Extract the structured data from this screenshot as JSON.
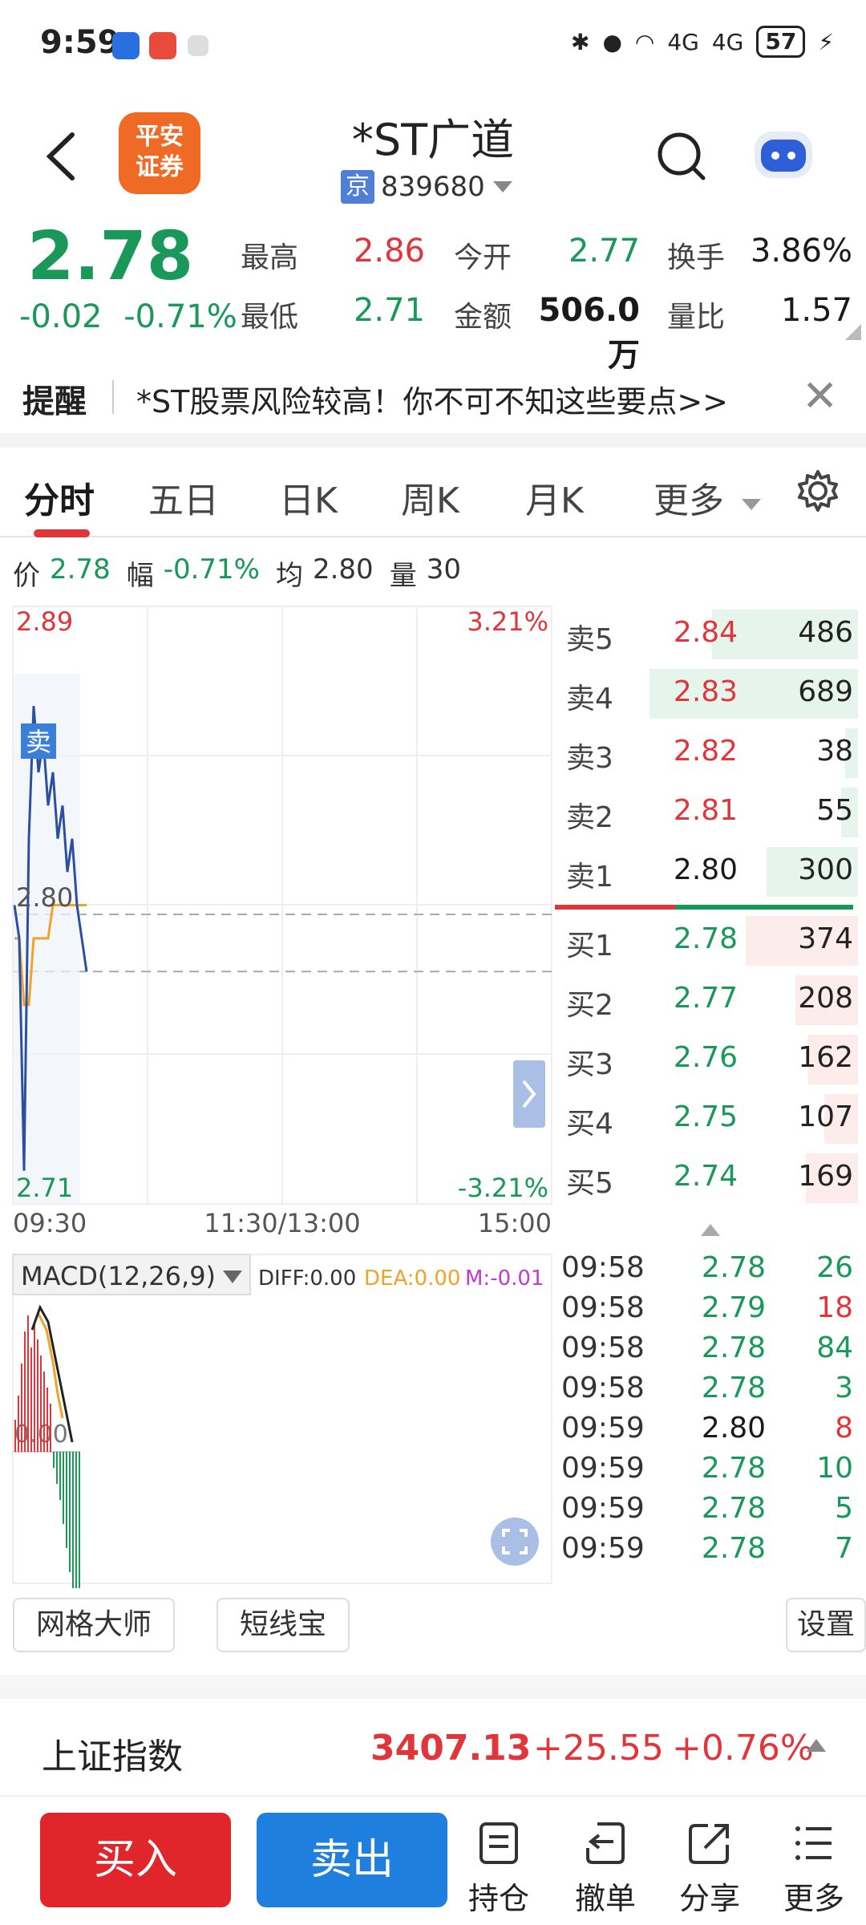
{
  "status_bar": {
    "time": "9:59",
    "battery": "57",
    "network_1": "4G",
    "network_2": "4G"
  },
  "header": {
    "logo_text_1": "平安",
    "logo_text_2": "证券",
    "stock_name": "*ST广道",
    "exchange": "京",
    "stock_code": "839680"
  },
  "quote": {
    "last_price": "2.78",
    "change": "-0.02",
    "change_pct": "-0.71%",
    "fields": [
      {
        "label": "最高",
        "value": "2.86",
        "tone": "red"
      },
      {
        "label": "今开",
        "value": "2.77",
        "tone": "green"
      },
      {
        "label": "换手",
        "value": "3.86%",
        "tone": "black"
      },
      {
        "label": "最低",
        "value": "2.71",
        "tone": "green"
      },
      {
        "label": "金额",
        "value": "506.0万",
        "tone": "black"
      },
      {
        "label": "量比",
        "value": "1.57",
        "tone": "black"
      }
    ]
  },
  "alert": {
    "title": "提醒",
    "text": "*ST股票风险较高！你不可不知这些要点>>"
  },
  "tabs": [
    {
      "label": "分时",
      "active": true
    },
    {
      "label": "五日",
      "active": false
    },
    {
      "label": "日K",
      "active": false
    },
    {
      "label": "周K",
      "active": false
    },
    {
      "label": "月K",
      "active": false
    },
    {
      "label": "更多",
      "active": false
    }
  ],
  "info_line": {
    "price_label": "价",
    "price": "2.78",
    "range_label": "幅",
    "range": "-0.71%",
    "avg_label": "均",
    "avg": "2.80",
    "vol_label": "量",
    "vol": "30"
  },
  "chart_data": {
    "type": "line",
    "y_top_label": "2.89",
    "y_bottom_label": "2.71",
    "y_mid_label": "2.80",
    "pct_top_label": "3.21%",
    "pct_bottom_label": "-3.21%",
    "x_labels": [
      "09:30",
      "11:30/13:00",
      "15:00"
    ],
    "sell_marker": "卖",
    "ylim": [
      2.71,
      2.89
    ],
    "series": [],
    "price_line": [
      2.8,
      2.79,
      2.72,
      2.82,
      2.86,
      2.84,
      2.85,
      2.83,
      2.84,
      2.82,
      2.83,
      2.81,
      2.82,
      2.8,
      2.79,
      2.78
    ],
    "avg_line": [
      2.79,
      2.79,
      2.77,
      2.77,
      2.79,
      2.79,
      2.79,
      2.79,
      2.8,
      2.8,
      2.8,
      2.8,
      2.8,
      2.8,
      2.8,
      2.8
    ],
    "macd": {
      "label": "MACD(12,26,9)",
      "diff": "DIFF:0.00",
      "dea": "DEA:0.00",
      "m": "M:-0.01",
      "zero_label": "0.00"
    }
  },
  "orderbook": {
    "asks": [
      {
        "label": "卖5",
        "price": "2.84",
        "vol": "486",
        "depth": 0.7
      },
      {
        "label": "卖4",
        "price": "2.83",
        "vol": "689",
        "depth": 1.0
      },
      {
        "label": "卖3",
        "price": "2.82",
        "vol": "38",
        "depth": 0.06
      },
      {
        "label": "卖2",
        "price": "2.81",
        "vol": "55",
        "depth": 0.08
      },
      {
        "label": "卖1",
        "price": "2.80",
        "vol": "300",
        "depth": 0.44
      }
    ],
    "bids": [
      {
        "label": "买1",
        "price": "2.78",
        "vol": "374",
        "depth": 0.54
      },
      {
        "label": "买2",
        "price": "2.77",
        "vol": "208",
        "depth": 0.3
      },
      {
        "label": "买3",
        "price": "2.76",
        "vol": "162",
        "depth": 0.24
      },
      {
        "label": "买4",
        "price": "2.75",
        "vol": "107",
        "depth": 0.16
      },
      {
        "label": "买5",
        "price": "2.74",
        "vol": "169",
        "depth": 0.25
      }
    ]
  },
  "ticks": [
    {
      "time": "09:58",
      "price": "2.78",
      "vol": "26",
      "ptone": "green",
      "vtone": "green"
    },
    {
      "time": "09:58",
      "price": "2.79",
      "vol": "18",
      "ptone": "green",
      "vtone": "red"
    },
    {
      "time": "09:58",
      "price": "2.78",
      "vol": "84",
      "ptone": "green",
      "vtone": "green"
    },
    {
      "time": "09:58",
      "price": "2.78",
      "vol": "3",
      "ptone": "green",
      "vtone": "green"
    },
    {
      "time": "09:59",
      "price": "2.80",
      "vol": "8",
      "ptone": "black",
      "vtone": "red"
    },
    {
      "time": "09:59",
      "price": "2.78",
      "vol": "10",
      "ptone": "green",
      "vtone": "green"
    },
    {
      "time": "09:59",
      "price": "2.78",
      "vol": "5",
      "ptone": "green",
      "vtone": "green"
    },
    {
      "time": "09:59",
      "price": "2.78",
      "vol": "7",
      "ptone": "green",
      "vtone": "green"
    }
  ],
  "tools": {
    "grid_master": "网格大师",
    "short_line": "短线宝",
    "settings": "设置"
  },
  "index_bar": {
    "name": "上证指数",
    "value": "3407.13",
    "change": "+25.55",
    "pct": "+0.76%"
  },
  "bottom_bar": {
    "buy": "买入",
    "sell": "卖出",
    "holdings": "持仓",
    "cancel": "撤单",
    "share": "分享",
    "more": "更多"
  },
  "colors": {
    "up": "#e0353b",
    "down": "#19985a",
    "buy_button": "#e0252b",
    "sell_button": "#1f7fdf"
  }
}
